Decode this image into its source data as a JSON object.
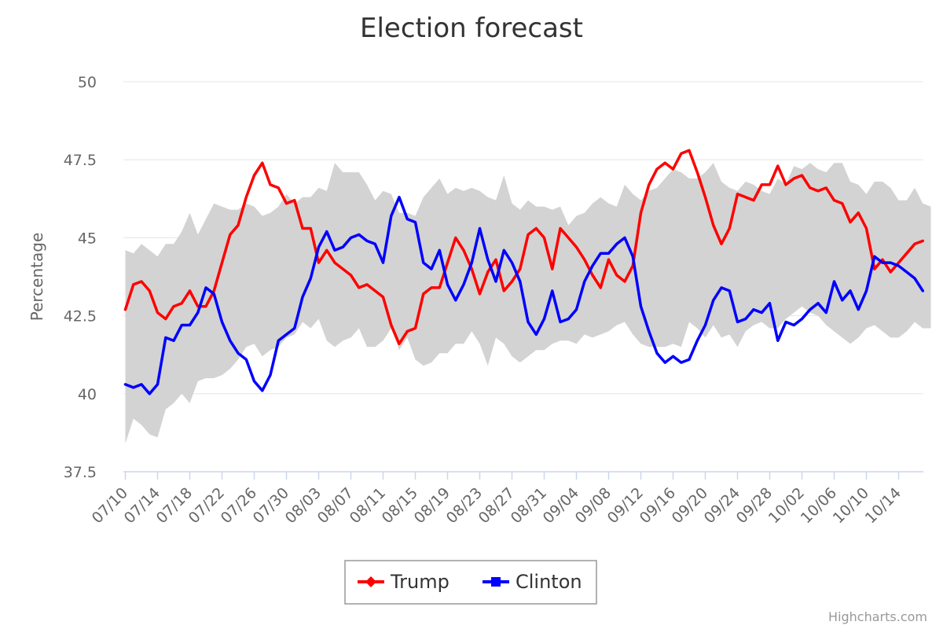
{
  "chart_data": {
    "type": "line",
    "title": "Election forecast",
    "ylabel": "Percentage",
    "ylim": [
      37.5,
      50
    ],
    "yticks": [
      "37.5",
      "40",
      "42.5",
      "45",
      "47.5",
      "50"
    ],
    "x_tick_labels": [
      "07/10",
      "07/14",
      "07/18",
      "07/22",
      "07/26",
      "07/30",
      "08/03",
      "08/07",
      "08/11",
      "08/15",
      "08/19",
      "08/23",
      "08/27",
      "08/31",
      "09/04",
      "09/08",
      "09/12",
      "09/16",
      "09/20",
      "09/24",
      "09/28",
      "10/02",
      "10/06",
      "10/10",
      "10/14"
    ],
    "x_start_date": "2016-07-10",
    "x_step_days": 1,
    "grid": true,
    "legend": "bottom-center",
    "credits": "Highcharts.com",
    "band": {
      "color": "#d3d3d3",
      "upper": [
        44.6,
        44.5,
        44.8,
        44.6,
        44.4,
        44.8,
        44.8,
        45.2,
        45.8,
        45.1,
        45.6,
        46.1,
        46.0,
        45.9,
        45.9,
        46.1,
        46.0,
        45.7,
        45.8,
        46.0,
        46.4,
        46.1,
        46.3,
        46.3,
        46.6,
        46.5,
        47.4,
        47.1,
        47.1,
        47.1,
        46.7,
        46.2,
        46.5,
        46.4,
        45.8,
        45.8,
        45.7,
        46.3,
        46.6,
        46.9,
        46.4,
        46.6,
        46.5,
        46.6,
        46.5,
        46.3,
        46.2,
        47.0,
        46.1,
        45.9,
        46.2,
        46.0,
        46.0,
        45.9,
        46.0,
        45.4,
        45.7,
        45.8,
        46.1,
        46.3,
        46.1,
        46.0,
        46.7,
        46.4,
        46.2,
        46.5,
        46.6,
        46.9,
        47.2,
        47.1,
        46.9,
        46.9,
        47.1,
        47.4,
        46.8,
        46.6,
        46.5,
        46.8,
        46.7,
        46.5,
        46.4,
        46.9,
        46.7,
        47.3,
        47.2,
        47.4,
        47.2,
        47.1,
        47.4,
        47.4,
        46.8,
        46.7,
        46.4,
        46.8,
        46.8,
        46.6,
        46.2,
        46.2,
        46.6,
        46.1,
        46.0
      ],
      "lower": [
        38.4,
        39.2,
        39.0,
        38.7,
        38.6,
        39.5,
        39.7,
        40.0,
        39.7,
        40.4,
        40.5,
        40.5,
        40.6,
        40.8,
        41.1,
        41.5,
        41.6,
        41.2,
        41.4,
        41.5,
        41.8,
        41.9,
        42.3,
        42.1,
        42.4,
        41.7,
        41.5,
        41.7,
        41.8,
        42.1,
        41.5,
        41.5,
        41.7,
        42.1,
        41.4,
        41.8,
        41.1,
        40.9,
        41.0,
        41.3,
        41.3,
        41.6,
        41.6,
        42.0,
        41.6,
        40.9,
        41.8,
        41.6,
        41.2,
        41.0,
        41.2,
        41.4,
        41.4,
        41.6,
        41.7,
        41.7,
        41.6,
        41.9,
        41.8,
        41.9,
        42.0,
        42.2,
        42.3,
        41.9,
        41.6,
        41.5,
        41.5,
        41.5,
        41.6,
        41.5,
        42.3,
        42.1,
        41.8,
        42.2,
        41.8,
        41.9,
        41.5,
        42.0,
        42.2,
        42.3,
        42.1,
        42.1,
        42.4,
        42.6,
        42.8,
        42.6,
        42.5,
        42.2,
        42.0,
        41.8,
        41.6,
        41.8,
        42.1,
        42.2,
        42.0,
        41.8,
        41.8,
        42.0,
        42.3,
        42.1,
        42.1
      ]
    },
    "series": [
      {
        "name": "Trump",
        "color": "#ff0000",
        "marker": "diamond",
        "values": [
          42.7,
          43.5,
          43.6,
          43.3,
          42.6,
          42.4,
          42.8,
          42.9,
          43.3,
          42.8,
          42.8,
          43.3,
          44.2,
          45.1,
          45.4,
          46.3,
          47.0,
          47.4,
          46.7,
          46.6,
          46.1,
          46.2,
          45.3,
          45.3,
          44.2,
          44.6,
          44.2,
          44.0,
          43.8,
          43.4,
          43.5,
          43.3,
          43.1,
          42.2,
          41.6,
          42.0,
          42.1,
          43.2,
          43.4,
          43.4,
          44.2,
          45.0,
          44.6,
          44.0,
          43.2,
          43.9,
          44.3,
          43.3,
          43.6,
          44.0,
          45.1,
          45.3,
          45.0,
          44.0,
          45.3,
          45.0,
          44.7,
          44.3,
          43.8,
          43.4,
          44.3,
          43.8,
          43.6,
          44.1,
          45.8,
          46.7,
          47.2,
          47.4,
          47.2,
          47.7,
          47.8,
          47.1,
          46.3,
          45.4,
          44.8,
          45.3,
          46.4,
          46.3,
          46.2,
          46.7,
          46.7,
          47.3,
          46.7,
          46.9,
          47.0,
          46.6,
          46.5,
          46.6,
          46.2,
          46.1,
          45.5,
          45.8,
          45.3,
          44.0,
          44.3,
          43.9,
          44.2,
          44.5,
          44.8,
          44.9
        ]
      },
      {
        "name": "Clinton",
        "color": "#0000ff",
        "marker": "square",
        "values": [
          40.3,
          40.2,
          40.3,
          40.0,
          40.3,
          41.8,
          41.7,
          42.2,
          42.2,
          42.6,
          43.4,
          43.2,
          42.3,
          41.7,
          41.3,
          41.1,
          40.4,
          40.1,
          40.6,
          41.7,
          41.9,
          42.1,
          43.1,
          43.7,
          44.7,
          45.2,
          44.6,
          44.7,
          45.0,
          45.1,
          44.9,
          44.8,
          44.2,
          45.7,
          46.3,
          45.6,
          45.5,
          44.2,
          44.0,
          44.6,
          43.5,
          43.0,
          43.5,
          44.2,
          45.3,
          44.3,
          43.6,
          44.6,
          44.2,
          43.6,
          42.3,
          41.9,
          42.4,
          43.3,
          42.3,
          42.4,
          42.7,
          43.6,
          44.1,
          44.5,
          44.5,
          44.8,
          45.0,
          44.4,
          42.8,
          42.0,
          41.3,
          41.0,
          41.2,
          41.0,
          41.1,
          41.7,
          42.2,
          43.0,
          43.4,
          43.3,
          42.3,
          42.4,
          42.7,
          42.6,
          42.9,
          41.7,
          42.3,
          42.2,
          42.4,
          42.7,
          42.9,
          42.6,
          43.6,
          43.0,
          43.3,
          42.7,
          43.3,
          44.4,
          44.2,
          44.2,
          44.1,
          43.9,
          43.7,
          43.3
        ]
      }
    ]
  }
}
